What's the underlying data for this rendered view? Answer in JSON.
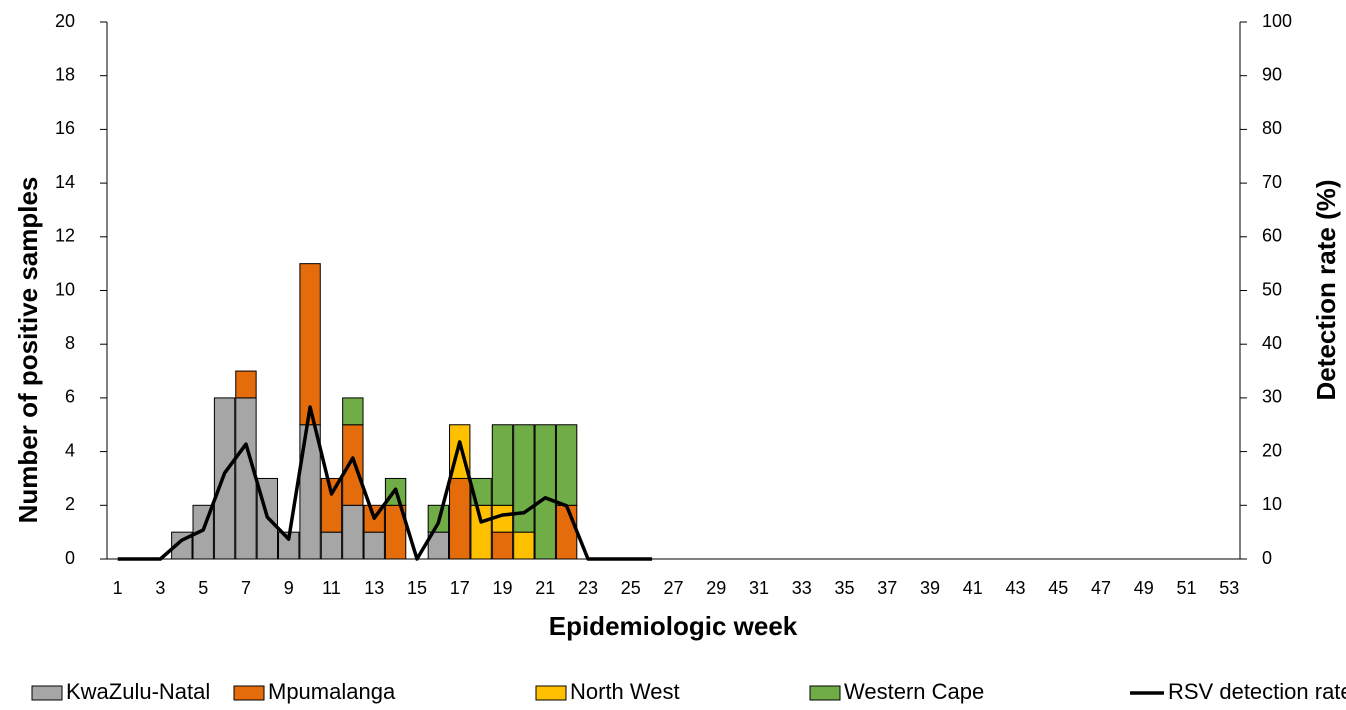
{
  "chart_data": {
    "type": "bar",
    "stacked": true,
    "xlabel": "Epidemiologic week",
    "ylabel": "Number of  positive samples",
    "y2label": "Detection rate (%)",
    "categories": [
      "1",
      null,
      "3",
      null,
      "5",
      null,
      "7",
      null,
      "9",
      null,
      "11",
      null,
      "13",
      null,
      "15",
      null,
      "17",
      null,
      "19",
      null,
      "21",
      null,
      "23",
      null,
      "25",
      null,
      "27",
      null,
      "29",
      null,
      "31",
      null,
      "33",
      null,
      "35",
      null,
      "37",
      null,
      "39",
      null,
      "41",
      null,
      "43",
      null,
      "45",
      null,
      "47",
      null,
      "49",
      null,
      "51",
      null,
      "53"
    ],
    "series": [
      {
        "name": "KwaZulu-Natal",
        "color": "#a6a6a6",
        "type": "bar",
        "values": [
          0,
          0,
          0,
          1,
          2,
          6,
          6,
          3,
          1,
          5,
          1,
          2,
          1,
          0,
          0,
          1,
          0,
          0,
          0,
          0,
          0,
          0,
          0,
          0,
          0,
          0,
          null,
          null,
          null,
          null,
          null,
          null,
          null,
          null,
          null,
          null,
          null,
          null,
          null,
          null,
          null,
          null,
          null,
          null,
          null,
          null,
          null,
          null,
          null,
          null,
          null,
          null,
          null
        ]
      },
      {
        "name": "Mpumalanga",
        "color": "#e46c0a",
        "type": "bar",
        "values": [
          0,
          0,
          0,
          0,
          0,
          0,
          1,
          0,
          0,
          6,
          2,
          3,
          1,
          2,
          0,
          0,
          3,
          0,
          1,
          0,
          0,
          2,
          0,
          0,
          0,
          0,
          null,
          null,
          null,
          null,
          null,
          null,
          null,
          null,
          null,
          null,
          null,
          null,
          null,
          null,
          null,
          null,
          null,
          null,
          null,
          null,
          null,
          null,
          null,
          null,
          null,
          null,
          null
        ]
      },
      {
        "name": "North West",
        "color": "#ffc000",
        "type": "bar",
        "values": [
          0,
          0,
          0,
          0,
          0,
          0,
          0,
          0,
          0,
          0,
          0,
          0,
          0,
          0,
          0,
          0,
          2,
          2,
          1,
          1,
          0,
          0,
          0,
          0,
          0,
          0,
          null,
          null,
          null,
          null,
          null,
          null,
          null,
          null,
          null,
          null,
          null,
          null,
          null,
          null,
          null,
          null,
          null,
          null,
          null,
          null,
          null,
          null,
          null,
          null,
          null,
          null,
          null
        ]
      },
      {
        "name": "Western Cape",
        "color": "#70ad47",
        "type": "bar",
        "values": [
          0,
          0,
          0,
          0,
          0,
          0,
          0,
          0,
          0,
          0,
          0,
          1,
          0,
          1,
          0,
          1,
          0,
          1,
          3,
          4,
          5,
          3,
          0,
          0,
          0,
          0,
          null,
          null,
          null,
          null,
          null,
          null,
          null,
          null,
          null,
          null,
          null,
          null,
          null,
          null,
          null,
          null,
          null,
          null,
          null,
          null,
          null,
          null,
          null,
          null,
          null,
          null,
          null
        ]
      },
      {
        "name": "RSV detection rate",
        "color": "#000000",
        "type": "line",
        "axis": "y2",
        "values": [
          0,
          0,
          0,
          3.5,
          5.4,
          16,
          21.4,
          7.8,
          3.7,
          28.3,
          12.1,
          18.8,
          7.6,
          13,
          0,
          6.7,
          21.8,
          6.9,
          8.2,
          8.6,
          11.4,
          9.9,
          0,
          0,
          0,
          0,
          null,
          null,
          null,
          null,
          null,
          null,
          null,
          null,
          null,
          null,
          null,
          null,
          null,
          null,
          null,
          null,
          null,
          null,
          null,
          null,
          null,
          null,
          null,
          null,
          null,
          null,
          null
        ]
      }
    ],
    "ylim": [
      0,
      20
    ],
    "yticks": [
      0,
      2,
      4,
      6,
      8,
      10,
      12,
      14,
      16,
      18,
      20
    ],
    "y2lim": [
      0,
      100
    ],
    "y2ticks": [
      0,
      10,
      20,
      30,
      40,
      50,
      60,
      70,
      80,
      90,
      100
    ],
    "grid": false,
    "legend": "bottom"
  }
}
